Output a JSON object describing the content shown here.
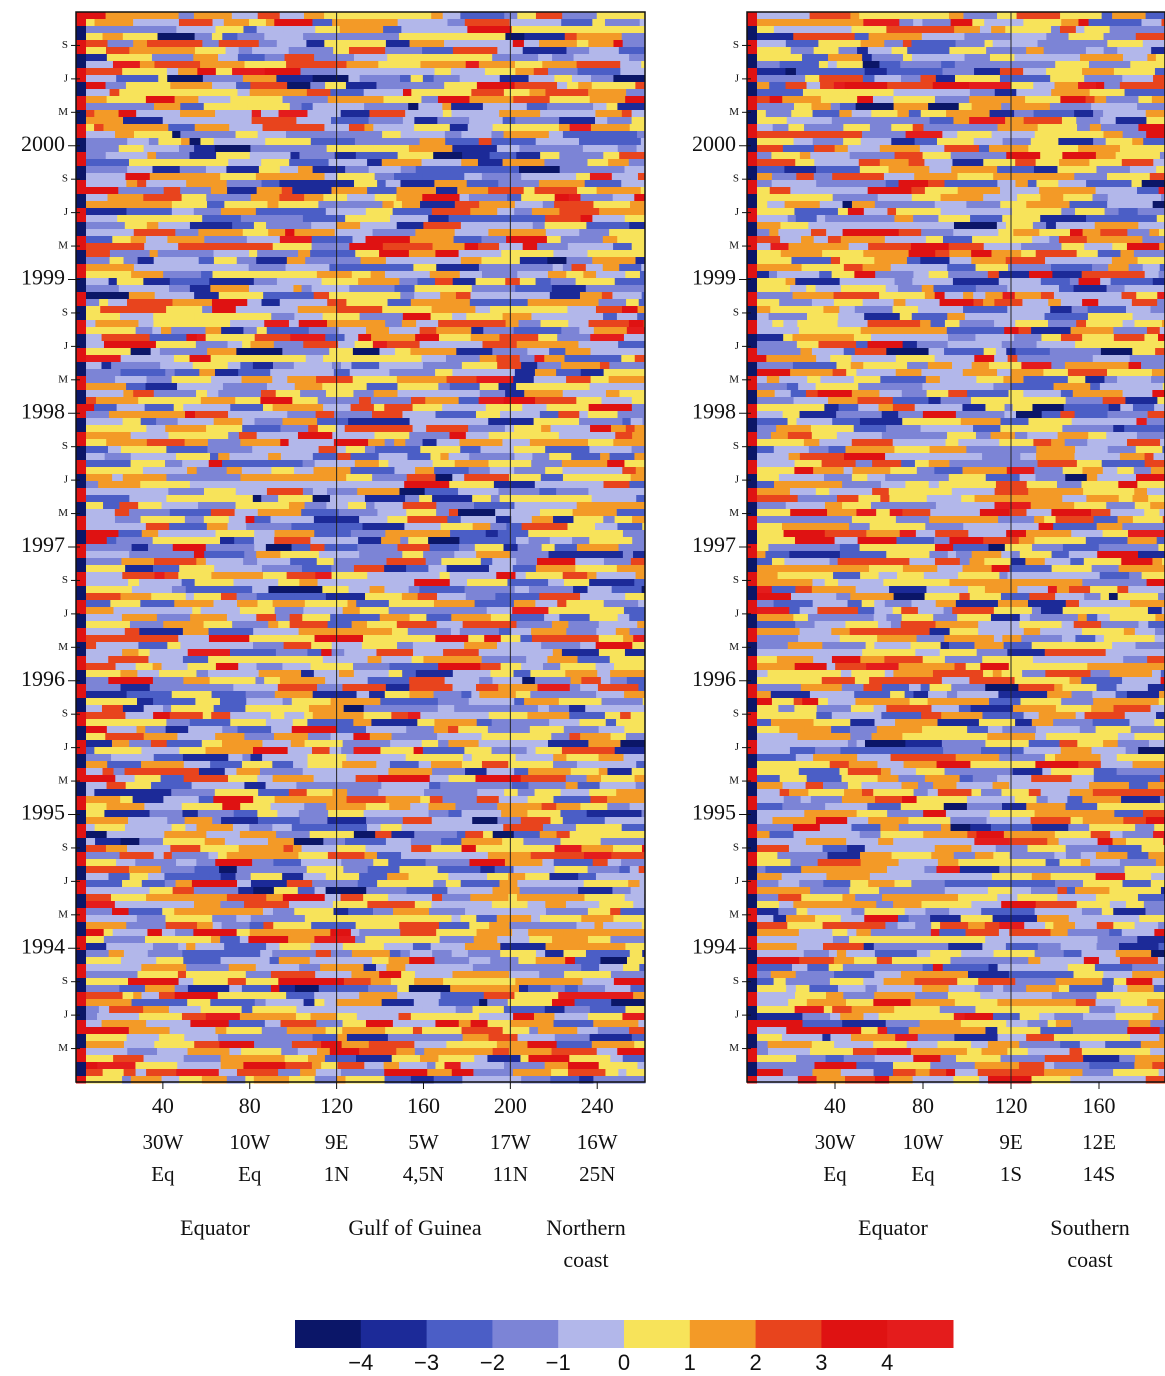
{
  "chart_data": [
    {
      "type": "heatmap",
      "xlim": [
        0,
        262
      ],
      "ylim": [
        1993,
        2001
      ],
      "xticks": [
        40,
        80,
        120,
        160,
        200,
        240
      ],
      "xtick_lon": [
        "30W",
        "10W",
        "9E",
        "5W",
        "17W",
        "16W"
      ],
      "xtick_lat": [
        "Eq",
        "Eq",
        "1N",
        "4,5N",
        "11N",
        "25N"
      ],
      "regions": [
        "Equator",
        "Gulf of Guinea",
        "Northern coast"
      ],
      "yticks": [
        {
          "value": 1993.25,
          "label": "M"
        },
        {
          "value": 1993.5,
          "label": "J"
        },
        {
          "value": 1993.75,
          "label": "S"
        },
        1994,
        {
          "value": 1994.25,
          "label": "M"
        },
        {
          "value": 1994.5,
          "label": "J"
        },
        {
          "value": 1994.75,
          "label": "S"
        },
        1995,
        {
          "value": 1995.25,
          "label": "M"
        },
        {
          "value": 1995.5,
          "label": "J"
        },
        {
          "value": 1995.75,
          "label": "S"
        },
        1996,
        {
          "value": 1996.25,
          "label": "M"
        },
        {
          "value": 1996.5,
          "label": "J"
        },
        {
          "value": 1996.75,
          "label": "S"
        },
        1997,
        {
          "value": 1997.25,
          "label": "M"
        },
        {
          "value": 1997.5,
          "label": "J"
        },
        {
          "value": 1997.75,
          "label": "S"
        },
        1998,
        {
          "value": 1998.25,
          "label": "M"
        },
        {
          "value": 1998.5,
          "label": "J"
        },
        {
          "value": 1998.75,
          "label": "S"
        },
        1999,
        {
          "value": 1999.25,
          "label": "M"
        },
        {
          "value": 1999.5,
          "label": "J"
        },
        {
          "value": 1999.75,
          "label": "S"
        },
        2000,
        {
          "value": 2000.25,
          "label": "M"
        },
        {
          "value": 2000.5,
          "label": "J"
        },
        {
          "value": 2000.75,
          "label": "S"
        }
      ]
    },
    {
      "type": "heatmap",
      "xlim": [
        0,
        190
      ],
      "ylim": [
        1993,
        2001
      ],
      "xticks": [
        40,
        80,
        120,
        160
      ],
      "xtick_lon": [
        "30W",
        "10W",
        "9E",
        "12E"
      ],
      "xtick_lat": [
        "Eq",
        "Eq",
        "1S",
        "14S"
      ],
      "regions": [
        "Equator",
        "Southern coast"
      ],
      "yticks": [
        {
          "value": 1993.25,
          "label": "M"
        },
        {
          "value": 1993.5,
          "label": "J"
        },
        {
          "value": 1993.75,
          "label": "S"
        },
        1994,
        {
          "value": 1994.25,
          "label": "M"
        },
        {
          "value": 1994.5,
          "label": "J"
        },
        {
          "value": 1994.75,
          "label": "S"
        },
        1995,
        {
          "value": 1995.25,
          "label": "M"
        },
        {
          "value": 1995.5,
          "label": "J"
        },
        {
          "value": 1995.75,
          "label": "S"
        },
        1996,
        {
          "value": 1996.25,
          "label": "M"
        },
        {
          "value": 1996.5,
          "label": "J"
        },
        {
          "value": 1996.75,
          "label": "S"
        },
        1997,
        {
          "value": 1997.25,
          "label": "M"
        },
        {
          "value": 1997.5,
          "label": "J"
        },
        {
          "value": 1997.75,
          "label": "S"
        },
        1998,
        {
          "value": 1998.25,
          "label": "M"
        },
        {
          "value": 1998.5,
          "label": "J"
        },
        {
          "value": 1998.75,
          "label": "S"
        },
        1999,
        {
          "value": 1999.25,
          "label": "M"
        },
        {
          "value": 1999.5,
          "label": "J"
        },
        {
          "value": 1999.75,
          "label": "S"
        },
        2000,
        {
          "value": 2000.25,
          "label": "M"
        },
        {
          "value": 2000.5,
          "label": "J"
        },
        {
          "value": 2000.75,
          "label": "S"
        }
      ]
    }
  ],
  "colorbar": {
    "lim": [
      -5,
      5
    ],
    "colors": [
      "#0b1668",
      "#1c2a98",
      "#4b5ec6",
      "#7c84d6",
      "#b2b7ea",
      "#f7e35a",
      "#f39a27",
      "#e8441d",
      "#df1212",
      "#e41c1c"
    ],
    "ticks": [
      {
        "value": -4,
        "label": "−4"
      },
      {
        "value": -3,
        "label": "−3"
      },
      {
        "value": -2,
        "label": "−2"
      },
      {
        "value": -1,
        "label": "−1"
      },
      0,
      1,
      2,
      3,
      4
    ]
  }
}
